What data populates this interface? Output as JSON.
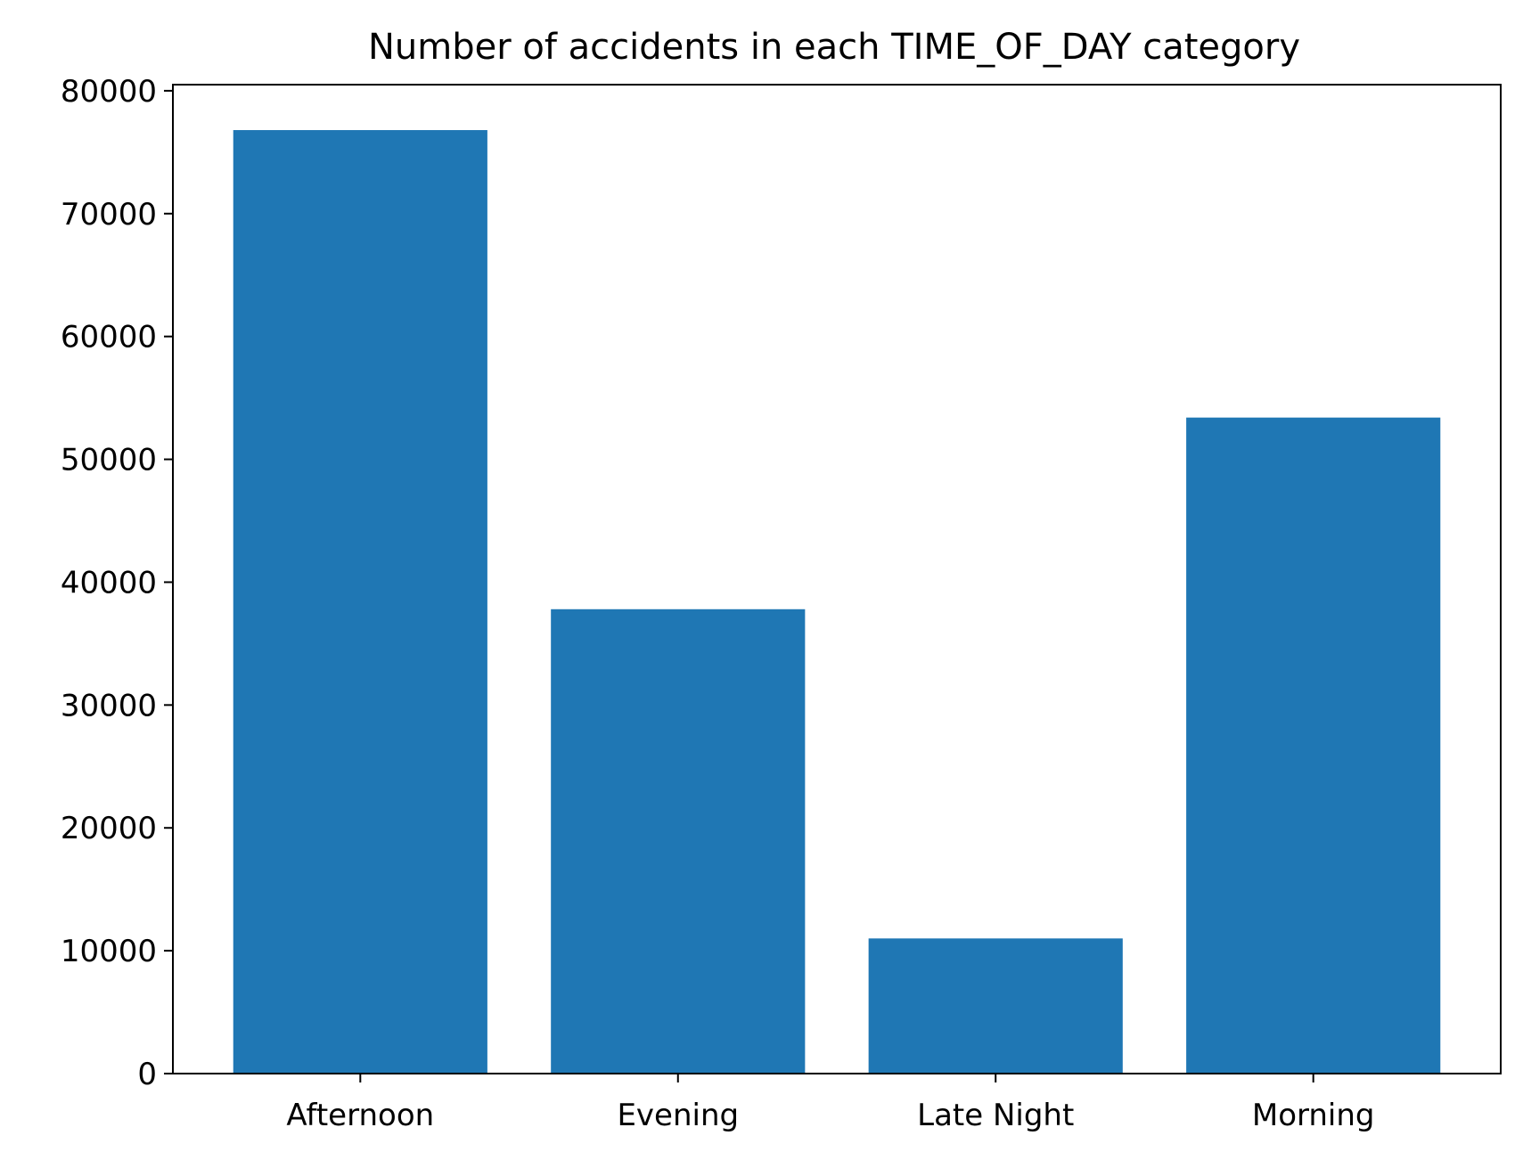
{
  "chart_data": {
    "type": "bar",
    "title": "Number of accidents in each TIME_OF_DAY category",
    "xlabel": "",
    "ylabel": "",
    "categories": [
      "Afternoon",
      "Evening",
      "Late Night",
      "Morning"
    ],
    "values": [
      76800,
      37800,
      11000,
      53400
    ],
    "ylim": [
      0,
      80500
    ],
    "yticks": [
      0,
      10000,
      20000,
      30000,
      40000,
      50000,
      60000,
      70000,
      80000
    ],
    "ytick_labels": [
      "0",
      "10000",
      "20000",
      "30000",
      "40000",
      "50000",
      "60000",
      "70000",
      "80000"
    ],
    "bar_color": "#1f77b4",
    "grid": false,
    "legend": "none"
  }
}
